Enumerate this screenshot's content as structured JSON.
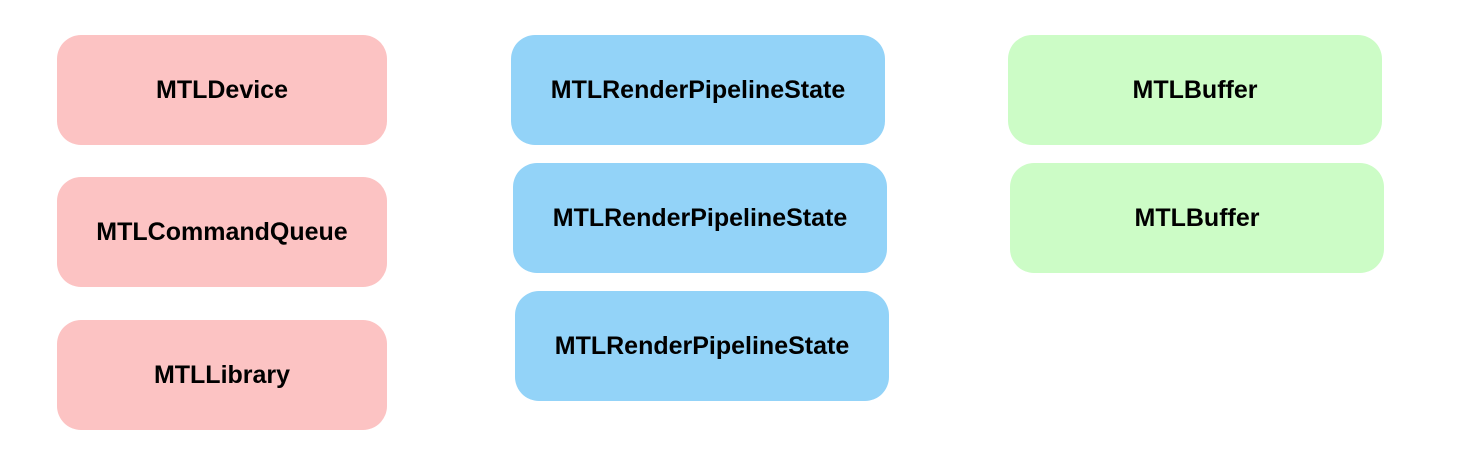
{
  "colors": {
    "device_group": "#fcc3c3",
    "pipeline_group": "#93d3f8",
    "buffer_group": "#ccfcc6",
    "background": "#ffffff",
    "text": "#000000"
  },
  "device_group": {
    "items": [
      {
        "label": "MTLDevice"
      },
      {
        "label": "MTLCommandQueue"
      },
      {
        "label": "MTLLibrary"
      }
    ]
  },
  "pipeline_group": {
    "items": [
      {
        "label": "MTLRenderPipelineState"
      },
      {
        "label": "MTLRenderPipelineState"
      },
      {
        "label": "MTLRenderPipelineState"
      }
    ]
  },
  "buffer_group": {
    "items": [
      {
        "label": "MTLBuffer"
      },
      {
        "label": "MTLBuffer"
      }
    ]
  }
}
